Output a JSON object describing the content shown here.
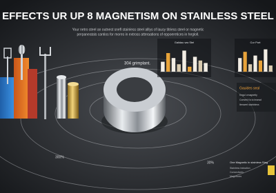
{
  "header": {
    "title": "EFFECTS UR UP 8 MAGNETISM ON STAINLESS STEEL",
    "subtitle": [
      "Your netro steel an outnest snefl stainless steel alllys of lausy titriess steel or magnetic",
      "perpaneatals cantios for mores in extross atteraations of eppoeretices in hegloll."
    ]
  },
  "labels": {
    "ring": "304 grimplant.",
    "orbit_left": "300%",
    "orbit_right": "30%"
  },
  "mini_charts": [
    {
      "title": "Gaiidac ww Stel",
      "values": [
        40,
        75,
        55,
        30,
        85,
        20,
        60,
        45,
        35
      ],
      "colors": [
        "#f2ede4",
        "#e8a33a",
        "#f2ede4",
        "#d9cbb0",
        "#f2ede4",
        "#e8a33a",
        "#f2ede4",
        "#d9cbb0",
        "#f2ede4"
      ]
    },
    {
      "title": "Cur Port",
      "values": [
        55,
        80,
        30,
        65,
        45,
        90,
        25
      ],
      "colors": [
        "#f2ede4",
        "#e8a33a",
        "#d9cbb0",
        "#f2ede4",
        "#e8a33a",
        "#f2ede4",
        "#d9cbb0"
      ]
    }
  ],
  "legend": {
    "title": "Gauides seal",
    "items": [
      "Kegul cmagnetly",
      "Conved t'a to lnsead",
      "Itenwrel stainbirea"
    ]
  },
  "note": {
    "title": "One Magnetic in stainless Steg",
    "lines": [
      "Stainless insivalion",
      "Convectiveis",
      "Magnrtuics"
    ]
  }
}
